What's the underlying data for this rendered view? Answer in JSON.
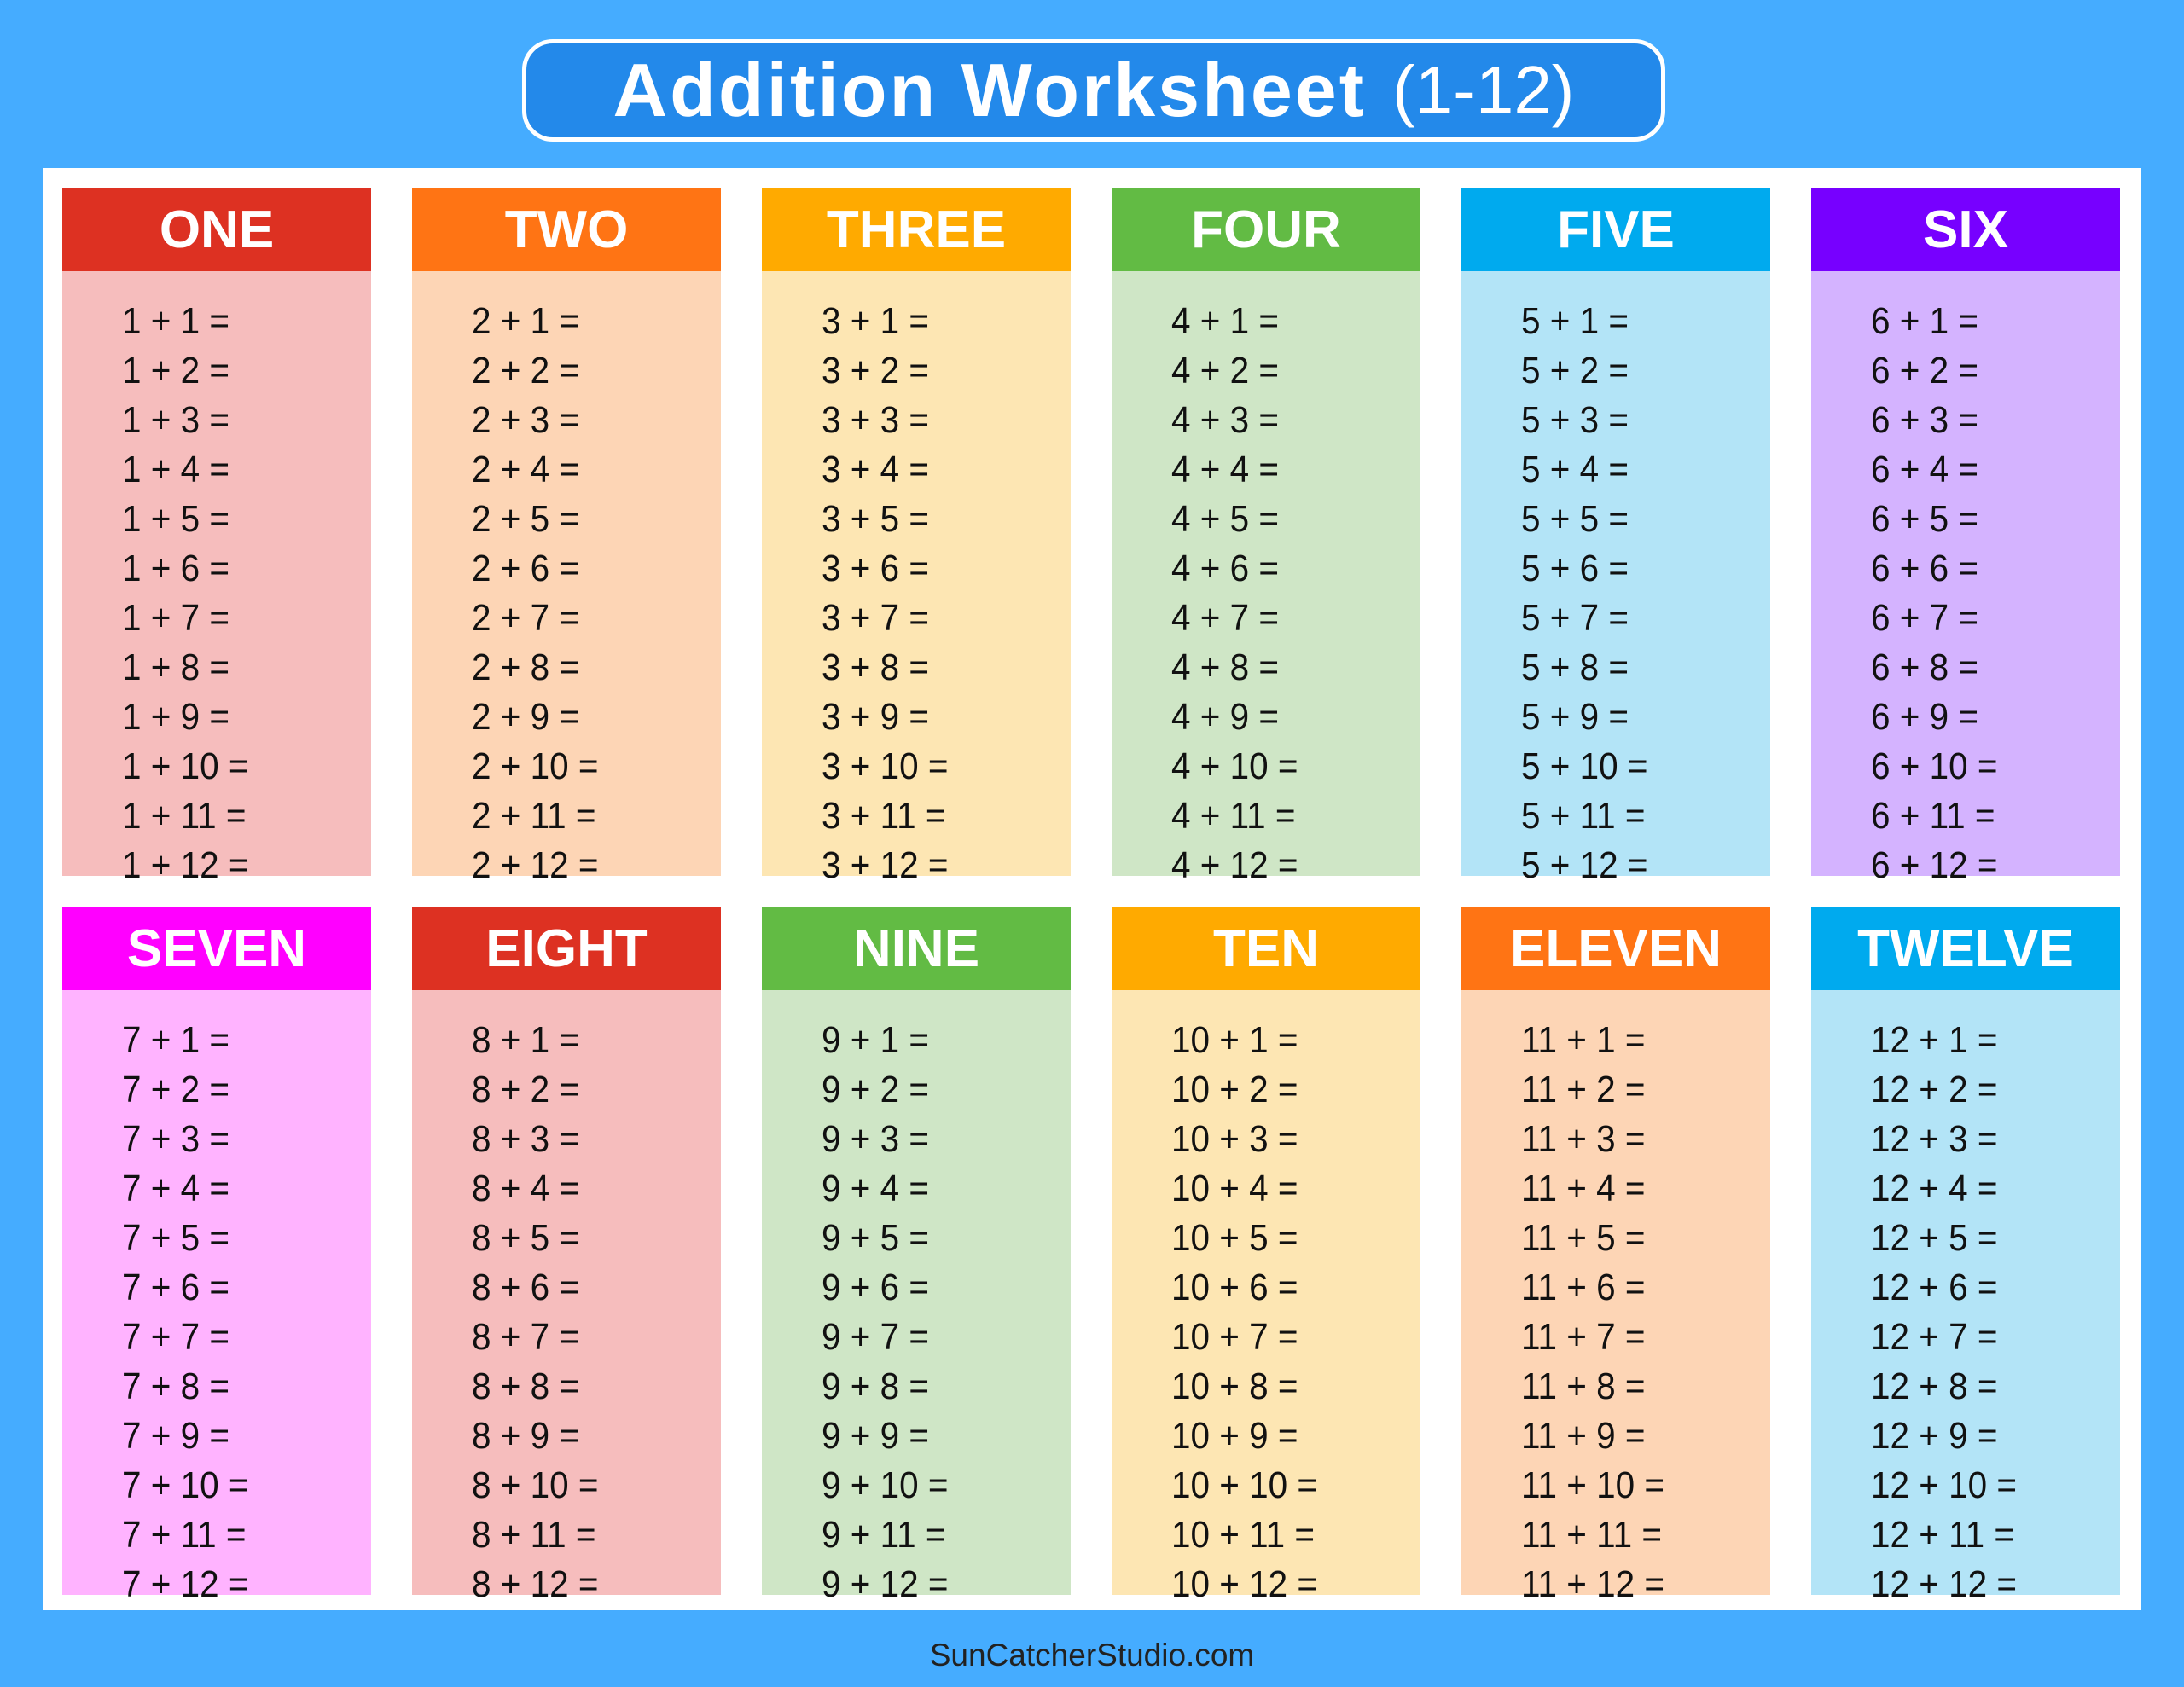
{
  "title": {
    "main": "Addition Worksheet",
    "range": "(1-12)"
  },
  "footer": "SunCatcherStudio.com",
  "colors": {
    "background": "#45acff",
    "title_box": "#2389ea",
    "panel": "#ffffff"
  },
  "columns": [
    {
      "label": "ONE",
      "header_color": "#dd3122",
      "body_color": "#f6bdbd",
      "problems": [
        "1 + 1 =",
        "1 + 2 =",
        "1 + 3 =",
        "1 + 4 =",
        "1 + 5 =",
        "1 + 6 =",
        "1 + 7 =",
        "1 + 8 =",
        "1 + 9 =",
        "1 + 10 =",
        "1 + 11 =",
        "1 + 12 ="
      ]
    },
    {
      "label": "TWO",
      "header_color": "#ff7414",
      "body_color": "#fdd5b5",
      "problems": [
        "2 + 1 =",
        "2 + 2 =",
        "2 + 3 =",
        "2 + 4 =",
        "2 + 5 =",
        "2 + 6 =",
        "2 + 7 =",
        "2 + 8 =",
        "2 + 9 =",
        "2 + 10 =",
        "2 + 11 =",
        "2 + 12 ="
      ]
    },
    {
      "label": "THREE",
      "header_color": "#ffaa00",
      "body_color": "#fde6b3",
      "problems": [
        "3 + 1 =",
        "3 + 2 =",
        "3 + 3 =",
        "3 + 4 =",
        "3 + 5 =",
        "3 + 6 =",
        "3 + 7 =",
        "3 + 8 =",
        "3 + 9 =",
        "3 + 10 =",
        "3 + 11 =",
        "3 + 12 ="
      ]
    },
    {
      "label": "FOUR",
      "header_color": "#62bb44",
      "body_color": "#cfe6c6",
      "problems": [
        "4 + 1 =",
        "4 + 2 =",
        "4 + 3 =",
        "4 + 4 =",
        "4 + 5 =",
        "4 + 6 =",
        "4 + 7 =",
        "4 + 8 =",
        "4 + 9 =",
        "4 + 10 =",
        "4 + 11 =",
        "4 + 12 ="
      ]
    },
    {
      "label": "FIVE",
      "header_color": "#00aaee",
      "body_color": "#b3e4f7",
      "problems": [
        "5 + 1 =",
        "5 + 2 =",
        "5 + 3 =",
        "5 + 4 =",
        "5 + 5 =",
        "5 + 6 =",
        "5 + 7 =",
        "5 + 8 =",
        "5 + 9 =",
        "5 + 10 =",
        "5 + 11 =",
        "5 + 12 ="
      ]
    },
    {
      "label": "SIX",
      "header_color": "#7700ff",
      "body_color": "#d4b3ff",
      "problems": [
        "6 + 1 =",
        "6 + 2 =",
        "6 + 3 =",
        "6 + 4 =",
        "6 + 5 =",
        "6 + 6 =",
        "6 + 7 =",
        "6 + 8 =",
        "6 + 9 =",
        "6 + 10 =",
        "6 + 11 =",
        "6 + 12 ="
      ]
    },
    {
      "label": "SEVEN",
      "header_color": "#ff00ff",
      "body_color": "#ffb3ff",
      "problems": [
        "7 + 1 =",
        "7 + 2 =",
        "7 + 3 =",
        "7 + 4 =",
        "7 + 5 =",
        "7 + 6 =",
        "7 + 7 =",
        "7 + 8 =",
        "7 + 9 =",
        "7 + 10 =",
        "7 + 11 =",
        "7 + 12 ="
      ]
    },
    {
      "label": "EIGHT",
      "header_color": "#dd3122",
      "body_color": "#f6bdbd",
      "problems": [
        "8 + 1 =",
        "8 + 2 =",
        "8 + 3 =",
        "8 + 4 =",
        "8 + 5 =",
        "8 + 6 =",
        "8 + 7 =",
        "8 + 8 =",
        "8 + 9 =",
        "8 + 10 =",
        "8 + 11 =",
        "8 + 12 ="
      ]
    },
    {
      "label": "NINE",
      "header_color": "#62bb44",
      "body_color": "#cfe6c6",
      "problems": [
        "9 + 1 =",
        "9 + 2 =",
        "9 + 3 =",
        "9 + 4 =",
        "9 + 5 =",
        "9 + 6 =",
        "9 + 7 =",
        "9 + 8 =",
        "9 + 9 =",
        "9 + 10 =",
        "9 + 11 =",
        "9 + 12 ="
      ]
    },
    {
      "label": "TEN",
      "header_color": "#ffaa00",
      "body_color": "#fde6b3",
      "problems": [
        "10 + 1 =",
        "10 + 2 =",
        "10 + 3 =",
        "10 + 4 =",
        "10 + 5 =",
        "10 + 6 =",
        "10 + 7 =",
        "10 + 8 =",
        "10 + 9 =",
        "10 + 10 =",
        "10 + 11 =",
        "10 + 12 ="
      ]
    },
    {
      "label": "ELEVEN",
      "header_color": "#ff7414",
      "body_color": "#fdd5b5",
      "problems": [
        "11 + 1 =",
        "11 + 2 =",
        "11 + 3 =",
        "11 + 4 =",
        "11 + 5 =",
        "11 + 6 =",
        "11 + 7 =",
        "11 + 8 =",
        "11 + 9 =",
        "11 + 10 =",
        "11 + 11 =",
        "11 + 12 ="
      ]
    },
    {
      "label": "TWELVE",
      "header_color": "#00aaee",
      "body_color": "#b3e4f7",
      "problems": [
        "12 + 1 =",
        "12 + 2 =",
        "12 + 3 =",
        "12 + 4 =",
        "12 + 5 =",
        "12 + 6 =",
        "12 + 7 =",
        "12 + 8 =",
        "12 + 9 =",
        "12 + 10 =",
        "12 + 11 =",
        "12 + 12 ="
      ]
    }
  ]
}
